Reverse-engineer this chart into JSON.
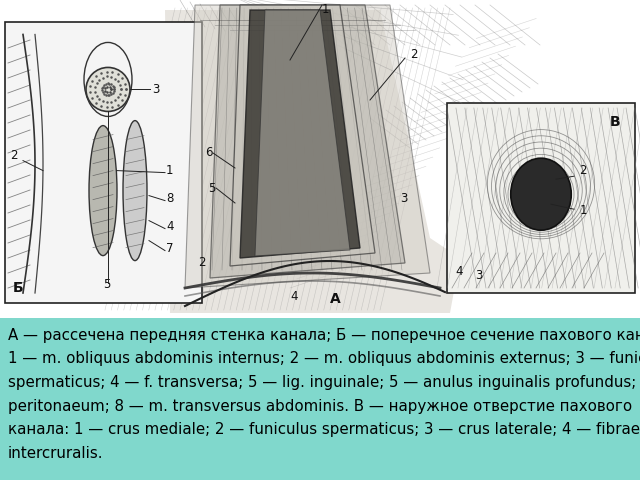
{
  "bg_color": "#f0f0f0",
  "top_bg": "#ffffff",
  "caption_bg": "#80d8cc",
  "caption_lines": [
    "А — рассечена передняя стенка канала; Б — поперечное сечение пахового канала;",
    "1 — m. obliquus abdominis internus; 2 — m. obliquus abdominis externus; 3 — funiculus",
    "spermaticus; 4 — f. transversa; 5 — lig. inguinale; 5 — anulus inguinalis profundus; 7 —",
    "peritonaeum; 8 — m. transversus abdominis. В — наружное отверстие пахового",
    "канала: 1 — crus mediale; 2 — funiculus spermaticus; 3 — crus laterale; 4 — fibrae",
    "intercruralis."
  ],
  "caption_fontsize": 10.8,
  "fig_w": 6.4,
  "fig_h": 4.8,
  "dpi": 100
}
